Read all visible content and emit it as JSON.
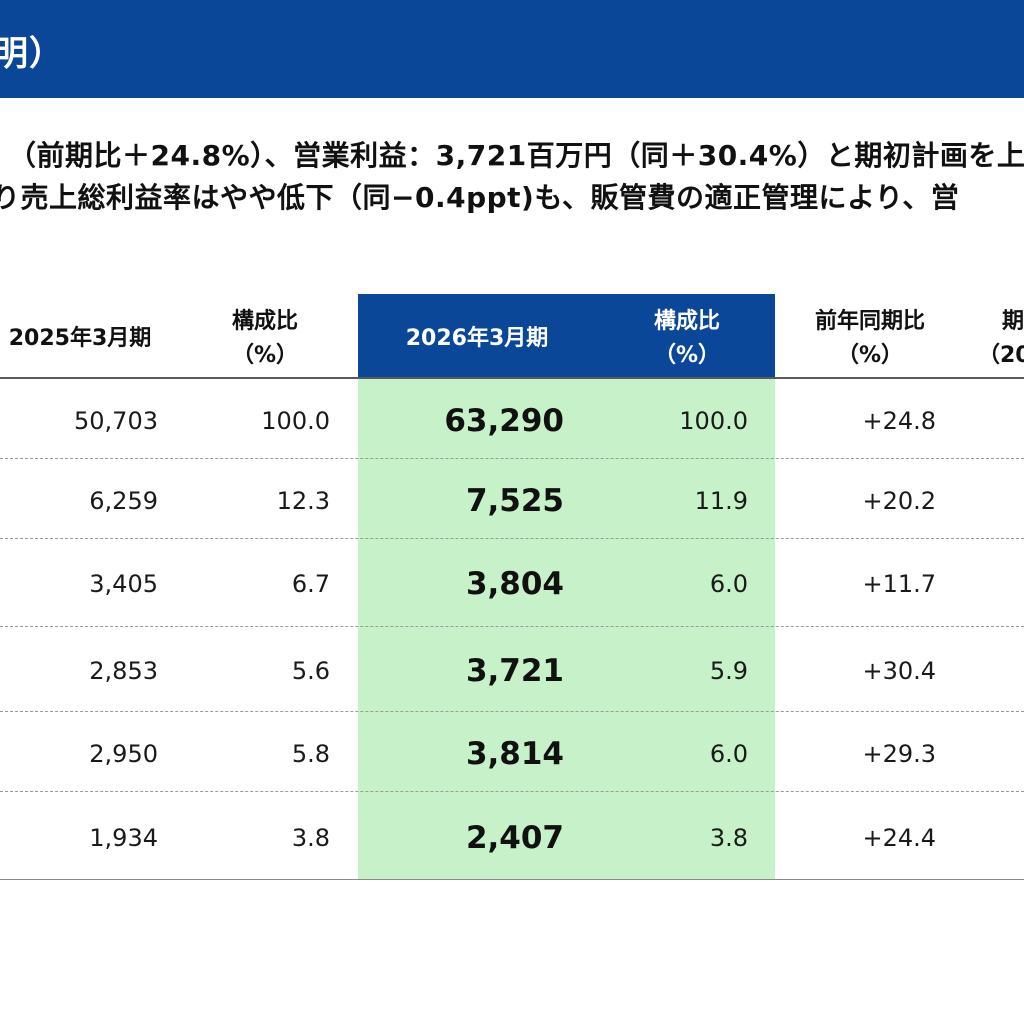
{
  "header": {
    "title": "明）"
  },
  "summary": {
    "line1": "（前期比＋24.8%）、営業利益：3,721百万円（同＋30.4%）と期初計画を上回",
    "line2": "り売上総利益率はやや低下（同−0.4ppt)も、販管費の適正管理により、営"
  },
  "table": {
    "headers": {
      "prev_period": "2025年3月期",
      "prev_ratio_line1": "構成比",
      "prev_ratio_line2": "（%）",
      "curr_period": "2026年3月期",
      "curr_ratio_line1": "構成比",
      "curr_ratio_line2": "（%）",
      "yoy_line1": "前年同期比",
      "yoy_line2": "（%）",
      "plan_line1": "期",
      "plan_line2": "（20"
    },
    "rows": [
      {
        "prev": "50,703",
        "prev_ratio": "100.0",
        "curr": "63,290",
        "curr_ratio": "100.0",
        "yoy": "+24.8"
      },
      {
        "prev": "6,259",
        "prev_ratio": "12.3",
        "curr": "7,525",
        "curr_ratio": "11.9",
        "yoy": "+20.2"
      },
      {
        "prev": "3,405",
        "prev_ratio": "6.7",
        "curr": "3,804",
        "curr_ratio": "6.0",
        "yoy": "+11.7"
      },
      {
        "prev": "2,853",
        "prev_ratio": "5.6",
        "curr": "3,721",
        "curr_ratio": "5.9",
        "yoy": "+30.4"
      },
      {
        "prev": "2,950",
        "prev_ratio": "5.8",
        "curr": "3,814",
        "curr_ratio": "6.0",
        "yoy": "+29.3"
      },
      {
        "prev": "1,934",
        "prev_ratio": "3.8",
        "curr": "2,407",
        "curr_ratio": "3.8",
        "yoy": "+24.4"
      }
    ]
  },
  "colors": {
    "header_blue": "#0a4798",
    "highlight_green": "#c6f1c9"
  }
}
